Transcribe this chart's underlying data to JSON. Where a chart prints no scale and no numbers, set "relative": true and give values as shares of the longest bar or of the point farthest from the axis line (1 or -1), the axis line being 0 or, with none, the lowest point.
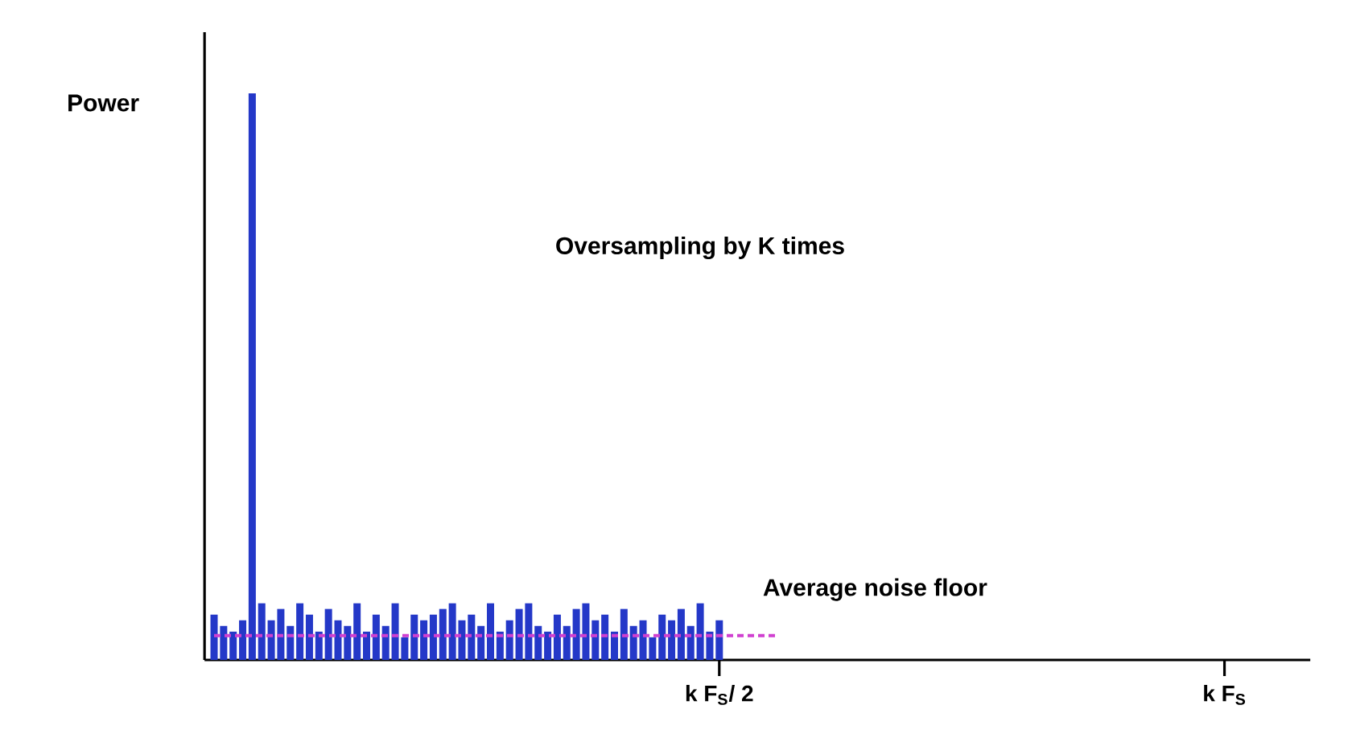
{
  "chart_data": {
    "type": "bar",
    "relative": true,
    "ylabel": "Power",
    "annotations": [
      "Oversampling by K times"
    ],
    "categories": [
      null,
      null,
      null,
      null,
      null,
      null,
      null,
      null,
      null,
      null,
      null,
      null,
      null,
      null,
      null,
      null,
      null,
      null,
      null,
      null,
      null,
      null,
      null,
      null,
      null,
      null,
      null,
      null,
      null,
      null,
      null,
      null,
      null,
      null,
      null,
      null,
      null,
      null,
      null,
      null,
      null,
      null,
      null,
      null,
      null,
      null,
      null,
      null,
      null,
      null,
      null,
      null,
      null,
      "k F$_{S}$/ 2",
      null,
      null,
      null,
      null,
      null,
      null,
      null,
      null,
      null,
      null,
      null,
      null,
      null,
      null,
      null,
      null,
      null,
      null,
      null,
      null,
      null,
      null,
      null,
      null,
      null,
      null,
      null,
      null,
      null,
      null,
      null,
      null,
      null,
      null,
      null,
      null,
      null,
      null,
      null,
      null,
      null,
      null,
      null,
      null,
      null,
      null,
      null,
      null,
      null,
      null,
      null,
      null,
      "k F$_{S}$",
      null,
      null,
      null,
      null,
      null,
      null,
      null,
      null,
      null
    ],
    "series": [
      {
        "color": "#2438c8",
        "values": [
          0.08,
          0.06,
          0.05,
          0.07,
          1,
          0.1,
          0.07,
          0.09,
          0.06,
          0.1,
          0.08,
          0.05,
          0.09,
          0.07,
          0.06,
          0.1,
          0.05,
          0.08,
          0.06,
          0.1,
          0.04,
          0.08,
          0.07,
          0.08,
          0.09,
          0.1,
          0.07,
          0.08,
          0.06,
          0.1,
          0.05,
          0.07,
          0.09,
          0.1,
          0.06,
          0.05,
          0.08,
          0.06,
          0.09,
          0.1,
          0.07,
          0.08,
          0.05,
          0.09,
          0.06,
          0.07,
          0.04,
          0.08,
          0.07,
          0.09,
          0.06,
          0.1,
          0.05,
          0.07,
          null,
          null,
          null,
          null,
          null,
          null,
          null,
          null,
          null,
          null,
          null,
          null,
          null,
          null,
          null,
          null,
          null,
          null,
          null,
          null,
          null,
          null,
          null,
          null,
          null,
          null,
          null,
          null,
          null,
          null,
          null,
          null,
          null,
          null,
          null,
          null,
          null,
          null,
          null,
          null,
          null,
          null,
          null,
          null,
          null,
          null,
          null,
          null,
          null,
          null,
          null,
          null,
          null,
          null,
          null,
          null,
          null,
          null,
          null,
          null,
          null,
          null
        ]
      },
      {
        "type": "line",
        "name": "Average noise floor",
        "color": "#d040d0",
        "line_style": "dashed",
        "values": [
          0.043,
          0.043,
          0.043,
          0.043,
          0.043,
          0.043,
          0.043,
          0.043,
          0.043,
          0.043,
          0.043,
          0.043,
          0.043,
          0.043,
          0.043,
          0.043,
          0.043,
          0.043,
          0.043,
          0.043,
          0.043,
          0.043,
          0.043,
          0.043,
          0.043,
          0.043,
          0.043,
          0.043,
          0.043,
          0.043,
          0.043,
          0.043,
          0.043,
          0.043,
          0.043,
          0.043,
          0.043,
          0.043,
          0.043,
          0.043,
          0.043,
          0.043,
          0.043,
          0.043,
          0.043,
          0.043,
          0.043,
          0.043,
          0.043,
          0.043,
          0.043,
          0.043,
          0.043,
          0.043,
          0.043,
          0.043,
          0.043,
          0.043,
          0.043,
          0.043,
          null,
          null,
          null,
          null,
          null,
          null,
          null,
          null,
          null,
          null,
          null,
          null,
          null,
          null,
          null,
          null,
          null,
          null,
          null,
          null,
          null,
          null,
          null,
          null,
          null,
          null,
          null,
          null,
          null,
          null,
          null,
          null,
          null,
          null,
          null,
          null,
          null,
          null,
          null,
          null,
          null,
          null,
          null,
          null,
          null,
          null,
          null,
          null,
          null,
          null,
          null,
          null,
          null,
          null,
          null,
          null
        ]
      }
    ]
  }
}
